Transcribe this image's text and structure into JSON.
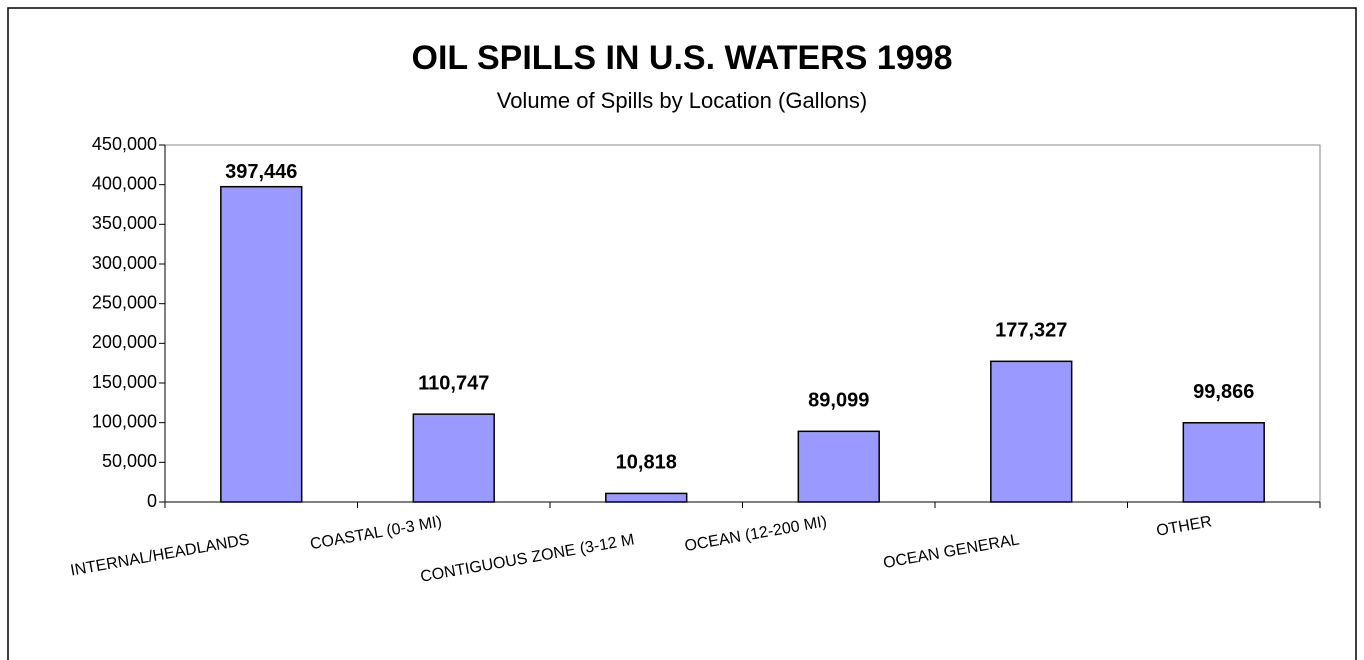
{
  "chart_data": {
    "type": "bar",
    "title": "OIL SPILLS IN U.S. WATERS 1998",
    "subtitle": "Volume of Spills by Location (Gallons)",
    "categories": [
      "INTERNAL/HEADLANDS",
      "COASTAL (0-3 MI)",
      "CONTIGUOUS ZONE (3-12 M",
      "OCEAN (12-200 MI)",
      "OCEAN GENERAL",
      "OTHER"
    ],
    "values": [
      397446,
      110747,
      10818,
      89099,
      177327,
      99866
    ],
    "value_labels": [
      "397,446",
      "110,747",
      "10,818",
      "89,099",
      "177,327",
      "99,866"
    ],
    "color": "#9999ff",
    "ylim": [
      0,
      450000
    ],
    "yticks": [
      0,
      {
        "value": 50000,
        "label": "50,000"
      },
      {
        "value": 100000,
        "label": "100,000"
      },
      {
        "value": 150000,
        "label": "150,000"
      },
      {
        "value": 200000,
        "label": "200,000"
      },
      {
        "value": 250000,
        "label": "250,000"
      },
      {
        "value": 300000,
        "label": "300,000"
      },
      {
        "value": 350000,
        "label": "350,000"
      },
      {
        "value": 400000,
        "label": "400,000"
      },
      {
        "value": 450000,
        "label": "450,000"
      }
    ],
    "grid": false
  }
}
